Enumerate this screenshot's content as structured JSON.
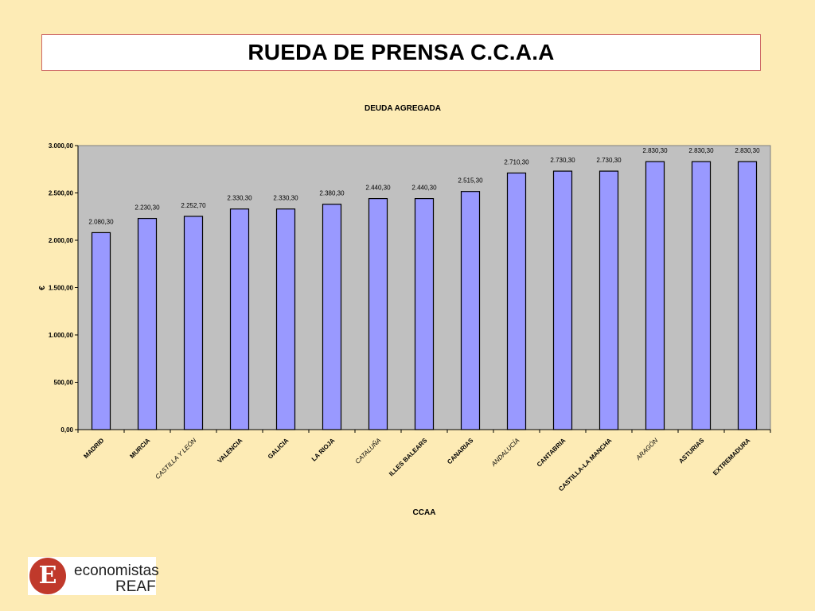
{
  "page": {
    "title": "RUEDA DE PRENSA C.C.A.A"
  },
  "logo": {
    "glyph": "E",
    "line1": "economistas",
    "line2": "REAF",
    "color": "#c0392b"
  },
  "chart_data": {
    "type": "bar",
    "title": "DEUDA AGREGADA",
    "xlabel": "CCAA",
    "ylabel": "€",
    "ylim": [
      0,
      3000
    ],
    "yticks": [
      0,
      500,
      1000,
      1500,
      2000,
      2500,
      3000
    ],
    "ytick_labels": [
      "0,00",
      "500,00",
      "1.000,00",
      "1.500,00",
      "2.000,00",
      "2.500,00",
      "3.000,00"
    ],
    "grid": false,
    "legend": "none",
    "bar_color": "#9999ff",
    "plot_background": "#c0c0c0",
    "categories": [
      "MADRID",
      "MURCIA",
      "CASTILLA Y LEÓN",
      "VALENCIA",
      "GALICIA",
      "LA RIOJA",
      "CATALUÑA",
      "ILLES BALEARS",
      "CANARIAS",
      "ANDALUCÍA",
      "CANTABRIA",
      "CASTILLA-LA MANCHA",
      "ARAGÓN",
      "ASTURIAS",
      "EXTREMADURA"
    ],
    "category_italic": [
      false,
      false,
      true,
      false,
      false,
      false,
      true,
      false,
      false,
      true,
      false,
      false,
      true,
      false,
      false
    ],
    "values": [
      2080.3,
      2230.3,
      2252.7,
      2330.3,
      2330.3,
      2380.3,
      2440.3,
      2440.3,
      2515.3,
      2710.3,
      2730.3,
      2730.3,
      2830.3,
      2830.3,
      2830.3
    ],
    "value_labels": [
      "2.080,30",
      "2.230,30",
      "2.252,70",
      "2.330,30",
      "2.330,30",
      "2.380,30",
      "2.440,30",
      "2.440,30",
      "2.515,30",
      "2.710,30",
      "2.730,30",
      "2.730,30",
      "2.830,30",
      "2.830,30",
      "2.830,30"
    ]
  }
}
